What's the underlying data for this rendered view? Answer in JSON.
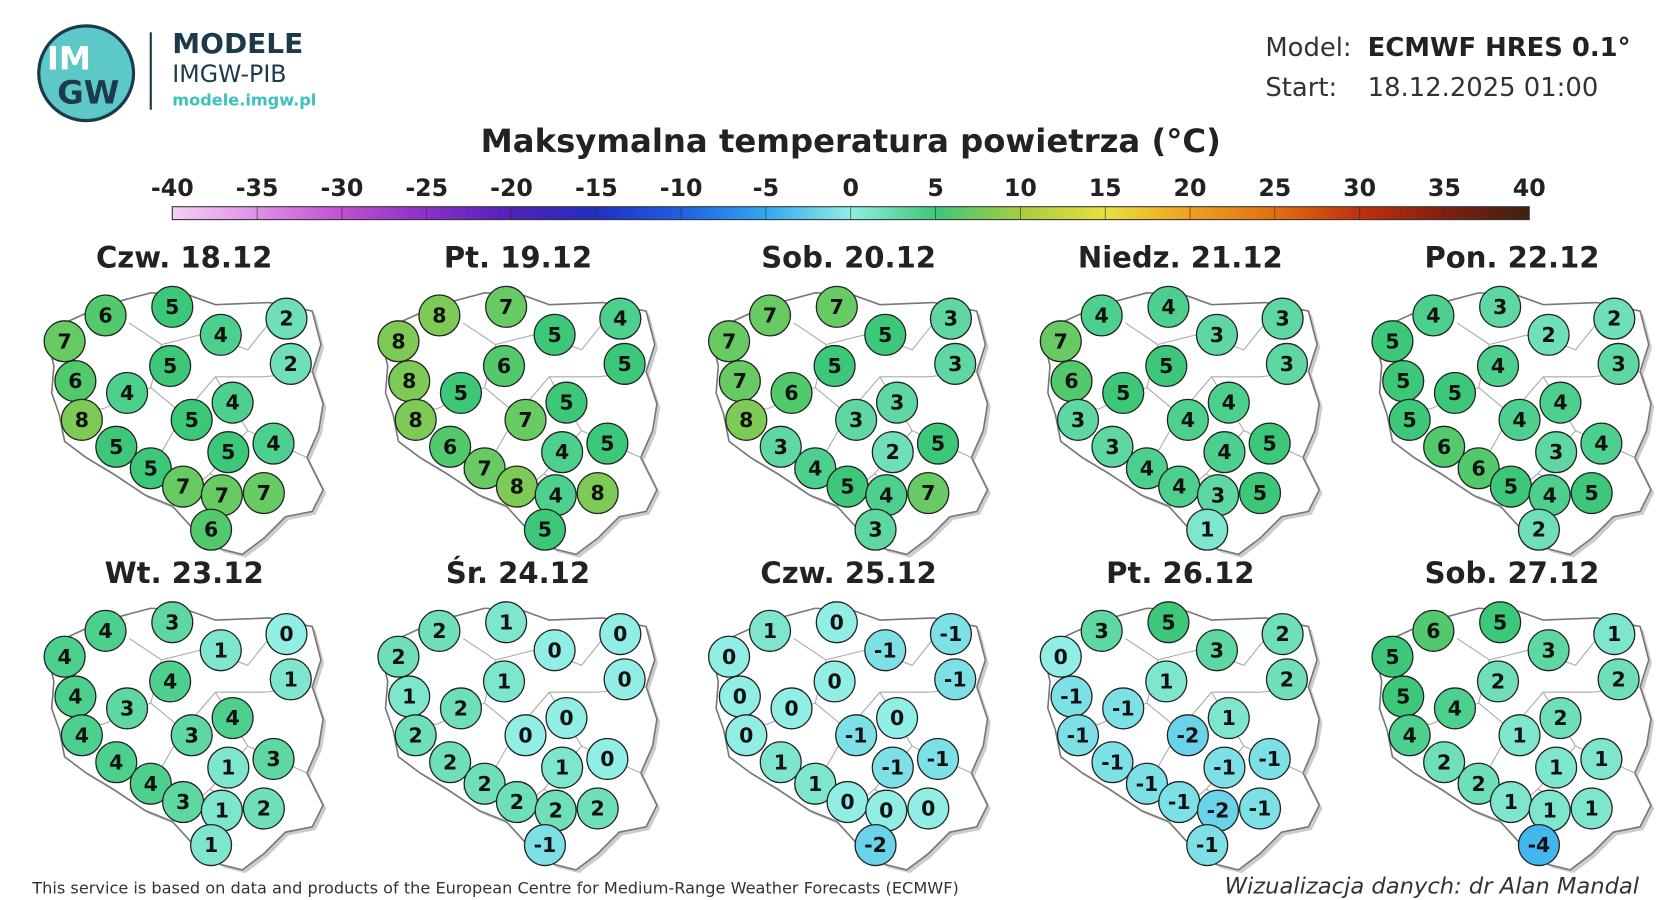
{
  "logo": {
    "top": "IM",
    "bottom": "GW"
  },
  "brand": {
    "title": "MODELE",
    "subtitle": "IMGW-PIB",
    "url": "modele.imgw.pl"
  },
  "model": {
    "label": "Model:",
    "value": "ECMWF HRES 0.1°"
  },
  "start": {
    "label": "Start:",
    "value": "18.12.2025 01:00"
  },
  "title": "Maksymalna temperatura powietrza (°C)",
  "colorbar": {
    "ticks": [
      -40,
      -35,
      -30,
      -25,
      -20,
      -15,
      -10,
      -5,
      0,
      5,
      10,
      15,
      20,
      25,
      30,
      35,
      40
    ],
    "colors": [
      "#f4d0f4",
      "#e090e8",
      "#c050d0",
      "#8a30c8",
      "#5020b8",
      "#2030c0",
      "#2060e0",
      "#30a8f0",
      "#90eee4",
      "#3cc878",
      "#a8cc40",
      "#e8e040",
      "#f0a020",
      "#e07010",
      "#c03010",
      "#802010",
      "#402010"
    ]
  },
  "maps": [
    {
      "title": "Czw. 18.12",
      "values": [
        6,
        5,
        2,
        7,
        4,
        5,
        2,
        6,
        4,
        4,
        8,
        5,
        5,
        5,
        4,
        5,
        7,
        7,
        7,
        6
      ]
    },
    {
      "title": "Pt. 19.12",
      "values": [
        8,
        7,
        4,
        8,
        5,
        6,
        5,
        8,
        5,
        5,
        8,
        7,
        6,
        4,
        5,
        7,
        8,
        4,
        8,
        5
      ]
    },
    {
      "title": "Sob. 20.12",
      "values": [
        7,
        7,
        3,
        7,
        5,
        5,
        3,
        7,
        6,
        3,
        8,
        3,
        3,
        2,
        5,
        4,
        5,
        4,
        7,
        3
      ]
    },
    {
      "title": "Niedz. 21.12",
      "values": [
        4,
        4,
        3,
        7,
        3,
        5,
        3,
        6,
        5,
        4,
        3,
        4,
        3,
        4,
        5,
        4,
        4,
        3,
        5,
        1
      ]
    },
    {
      "title": "Pon. 22.12",
      "values": [
        4,
        3,
        2,
        5,
        2,
        4,
        3,
        5,
        5,
        4,
        5,
        4,
        6,
        3,
        4,
        6,
        5,
        4,
        5,
        2
      ]
    },
    {
      "title": "Wt. 23.12",
      "values": [
        4,
        3,
        0,
        4,
        1,
        4,
        1,
        4,
        3,
        4,
        4,
        3,
        4,
        1,
        3,
        4,
        3,
        1,
        2,
        1
      ]
    },
    {
      "title": "Śr. 24.12",
      "values": [
        2,
        1,
        0,
        2,
        0,
        1,
        0,
        1,
        2,
        0,
        2,
        0,
        2,
        1,
        0,
        2,
        2,
        2,
        2,
        -1
      ]
    },
    {
      "title": "Czw. 25.12",
      "values": [
        1,
        0,
        -1,
        0,
        -1,
        0,
        -1,
        0,
        0,
        0,
        0,
        -1,
        1,
        -1,
        -1,
        1,
        0,
        0,
        0,
        -2
      ]
    },
    {
      "title": "Pt. 26.12",
      "values": [
        3,
        5,
        2,
        0,
        3,
        1,
        2,
        -1,
        -1,
        1,
        -1,
        -2,
        -1,
        -1,
        -1,
        -1,
        -1,
        -2,
        -1,
        -1
      ]
    },
    {
      "title": "Sob. 27.12",
      "values": [
        6,
        5,
        1,
        5,
        3,
        2,
        2,
        5,
        4,
        2,
        4,
        1,
        2,
        1,
        1,
        2,
        1,
        1,
        1,
        -4
      ]
    }
  ],
  "footer": {
    "left": "This service is based on data and products of the European Centre for Medium-Range Weather Forecasts (ECMWF)",
    "right": "Wizualizacja danych: dr Alan Mandal"
  }
}
